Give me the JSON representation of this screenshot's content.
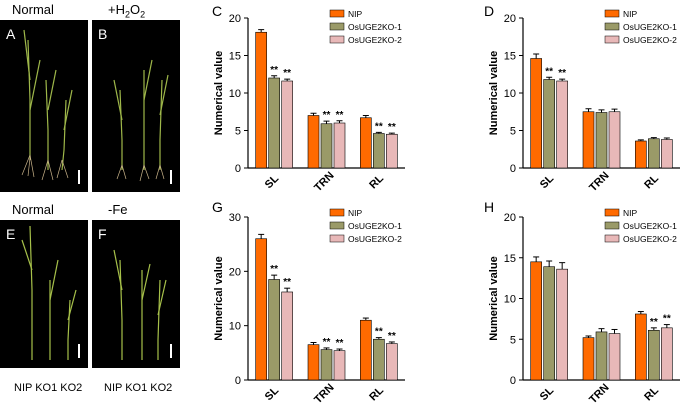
{
  "colors": {
    "NIP": "#ff6a00",
    "OsUGE2KO-1": "#9a9a68",
    "OsUGE2KO-2": "#e8b8b8",
    "photo_bg": "#000000",
    "plant": "#8fae3a"
  },
  "photos": {
    "top_left": {
      "label": "Normal",
      "letter": "A"
    },
    "top_right": {
      "label": "+H2O2",
      "label_main": "+H",
      "label_sub": "2",
      "label_mid": "O",
      "label_sub2": "2",
      "letter": "B"
    },
    "bottom_left": {
      "label": "Normal",
      "letter": "E",
      "genotypes": "NIP KO1 KO2"
    },
    "bottom_right": {
      "label": "-Fe",
      "letter": "F",
      "genotypes": "NIP KO1 KO2"
    }
  },
  "chart_data": [
    {
      "panel": "C",
      "type": "bar",
      "categories": [
        "SL",
        "TRN",
        "RL"
      ],
      "ylabel": "Numerical value",
      "ylim": [
        0,
        20
      ],
      "yticks": [
        0,
        5,
        10,
        15,
        20
      ],
      "legend": "top-right",
      "series": [
        {
          "name": "NIP",
          "values": [
            18.1,
            7.0,
            6.7
          ],
          "errors": [
            0.35,
            0.3,
            0.3
          ]
        },
        {
          "name": "OsUGE2KO-1",
          "values": [
            12.0,
            5.9,
            4.6
          ],
          "errors": [
            0.3,
            0.35,
            0.15
          ]
        },
        {
          "name": "OsUGE2KO-2",
          "values": [
            11.6,
            6.0,
            4.5
          ],
          "errors": [
            0.25,
            0.3,
            0.15
          ]
        }
      ],
      "annotations": [
        {
          "series": 1,
          "category": 0,
          "text": "**"
        },
        {
          "series": 2,
          "category": 0,
          "text": "**"
        },
        {
          "series": 1,
          "category": 1,
          "text": "**"
        },
        {
          "series": 2,
          "category": 1,
          "text": "**"
        },
        {
          "series": 1,
          "category": 2,
          "text": "**"
        },
        {
          "series": 2,
          "category": 2,
          "text": "**"
        }
      ]
    },
    {
      "panel": "D",
      "type": "bar",
      "categories": [
        "SL",
        "TRN",
        "RL"
      ],
      "ylabel": "Numerical value",
      "ylim": [
        0,
        20
      ],
      "yticks": [
        0,
        5,
        10,
        15,
        20
      ],
      "legend": "top-right",
      "series": [
        {
          "name": "NIP",
          "values": [
            14.6,
            7.5,
            3.6
          ],
          "errors": [
            0.6,
            0.4,
            0.15
          ]
        },
        {
          "name": "OsUGE2KO-1",
          "values": [
            11.8,
            7.4,
            3.9
          ],
          "errors": [
            0.3,
            0.35,
            0.15
          ]
        },
        {
          "name": "OsUGE2KO-2",
          "values": [
            11.6,
            7.5,
            3.8
          ],
          "errors": [
            0.25,
            0.35,
            0.2
          ]
        }
      ],
      "annotations": [
        {
          "series": 1,
          "category": 0,
          "text": "**"
        },
        {
          "series": 2,
          "category": 0,
          "text": "**"
        }
      ]
    },
    {
      "panel": "G",
      "type": "bar",
      "categories": [
        "SL",
        "TRN",
        "RL"
      ],
      "ylabel": "Numerical value",
      "ylim": [
        0,
        30
      ],
      "yticks": [
        0,
        10,
        20,
        30
      ],
      "legend": "top-right",
      "series": [
        {
          "name": "NIP",
          "values": [
            26.0,
            6.5,
            11.0
          ],
          "errors": [
            0.8,
            0.4,
            0.4
          ]
        },
        {
          "name": "OsUGE2KO-1",
          "values": [
            18.5,
            5.6,
            7.5
          ],
          "errors": [
            0.8,
            0.3,
            0.3
          ]
        },
        {
          "name": "OsUGE2KO-2",
          "values": [
            16.2,
            5.4,
            6.7
          ],
          "errors": [
            0.7,
            0.3,
            0.3
          ]
        }
      ],
      "annotations": [
        {
          "series": 1,
          "category": 0,
          "text": "**"
        },
        {
          "series": 2,
          "category": 0,
          "text": "**"
        },
        {
          "series": 1,
          "category": 1,
          "text": "**"
        },
        {
          "series": 2,
          "category": 1,
          "text": "**"
        },
        {
          "series": 1,
          "category": 2,
          "text": "**"
        },
        {
          "series": 2,
          "category": 2,
          "text": "**"
        }
      ]
    },
    {
      "panel": "H",
      "type": "bar",
      "categories": [
        "SL",
        "TRN",
        "RL"
      ],
      "ylabel": "Numerical value",
      "ylim": [
        0,
        20
      ],
      "yticks": [
        0,
        5,
        10,
        15,
        20
      ],
      "legend": "top-right",
      "series": [
        {
          "name": "NIP",
          "values": [
            14.5,
            5.2,
            8.1
          ],
          "errors": [
            0.6,
            0.2,
            0.3
          ]
        },
        {
          "name": "OsUGE2KO-1",
          "values": [
            13.9,
            5.9,
            6.1
          ],
          "errors": [
            0.7,
            0.4,
            0.3
          ]
        },
        {
          "name": "OsUGE2KO-2",
          "values": [
            13.6,
            5.7,
            6.4
          ],
          "errors": [
            0.8,
            0.5,
            0.4
          ]
        }
      ],
      "annotations": [
        {
          "series": 1,
          "category": 2,
          "text": "**"
        },
        {
          "series": 2,
          "category": 2,
          "text": "**"
        }
      ]
    }
  ]
}
